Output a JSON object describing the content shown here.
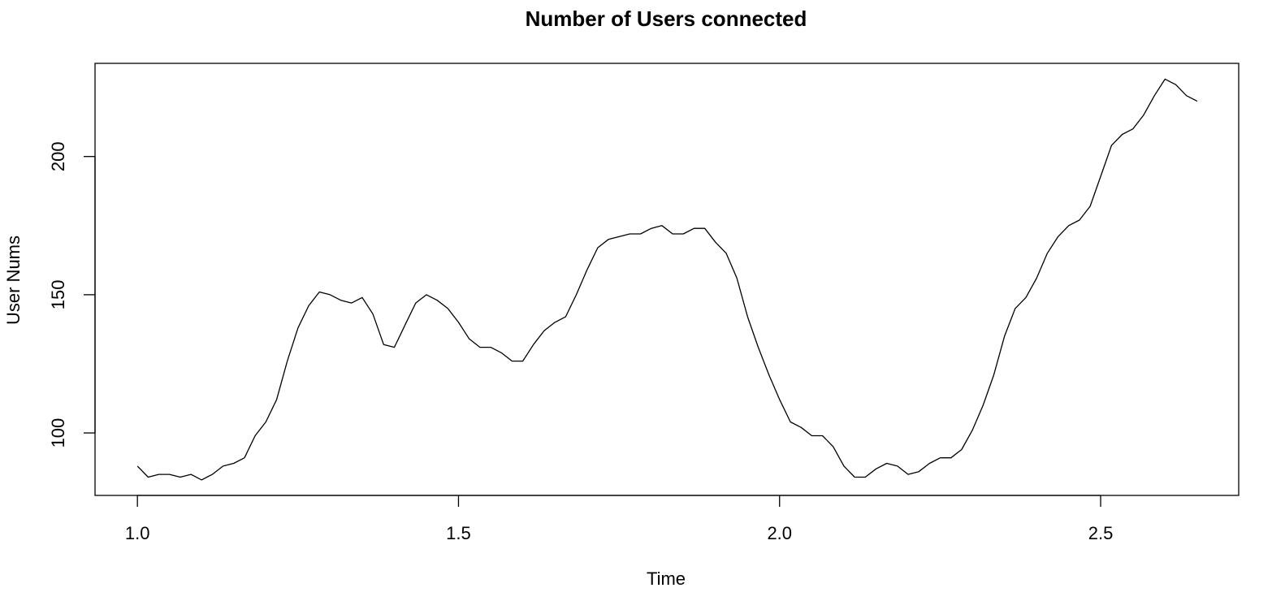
{
  "chart_data": {
    "type": "line",
    "title": "Number of Users connected",
    "xlabel": "Time",
    "ylabel": "User Nums",
    "xlim": [
      0.934,
      2.715
    ],
    "ylim": [
      77.4,
      233.7
    ],
    "x_ticks": [
      1.0,
      1.5,
      2.0,
      2.5
    ],
    "x_tick_labels": [
      "1.0",
      "1.5",
      "2.0",
      "2.5"
    ],
    "y_ticks": [
      100,
      150,
      200
    ],
    "y_tick_labels": [
      "100",
      "150",
      "200"
    ],
    "grid": false,
    "x_start": 1.0,
    "x_step": 0.01667,
    "series": [
      {
        "values": [
          88,
          84,
          85,
          85,
          84,
          85,
          83,
          85,
          88,
          89,
          91,
          99,
          104,
          112,
          126,
          138,
          146,
          151,
          150,
          148,
          147,
          149,
          143,
          132,
          131,
          139,
          147,
          150,
          148,
          145,
          140,
          134,
          131,
          131,
          129,
          126,
          126,
          132,
          137,
          140,
          142,
          150,
          159,
          167,
          170,
          171,
          172,
          172,
          174,
          175,
          172,
          172,
          174,
          174,
          169,
          165,
          156,
          142,
          131,
          121,
          112,
          104,
          102,
          99,
          99,
          95,
          88,
          84,
          84,
          87,
          89,
          88,
          85,
          86,
          89,
          91,
          91,
          94,
          101,
          110,
          121,
          135,
          145,
          149,
          156,
          165,
          171,
          175,
          177,
          182,
          193,
          204,
          208,
          210,
          215,
          222,
          228,
          226,
          222,
          220
        ]
      }
    ]
  }
}
